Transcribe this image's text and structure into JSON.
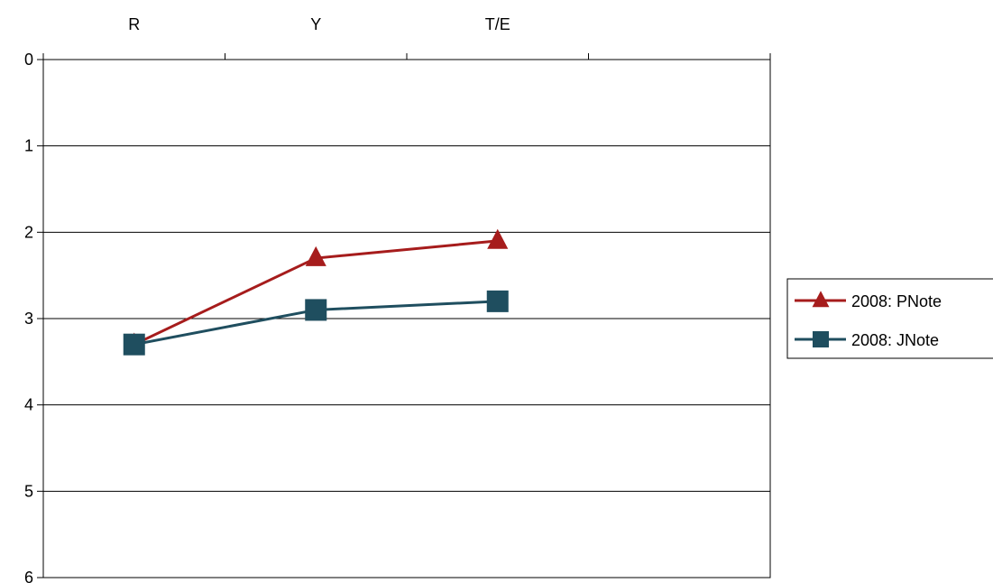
{
  "chart_data": {
    "type": "line",
    "categories": [
      "R",
      "Y",
      "T/E"
    ],
    "x_axis_slots": 4,
    "x_axis_position": "top",
    "y_axis_reversed": true,
    "ylim": [
      0,
      6
    ],
    "yticks": [
      "0",
      "1",
      "2",
      "3",
      "4",
      "5",
      "6"
    ],
    "grid": true,
    "legend_position": "right",
    "series": [
      {
        "name": "2008: PNote",
        "values": [
          3.3,
          2.3,
          2.1
        ],
        "color": "#a61c1c",
        "marker": "triangle"
      },
      {
        "name": "2008: JNote",
        "values": [
          3.3,
          2.9,
          2.8
        ],
        "color": "#1f4e5f",
        "marker": "square"
      }
    ]
  }
}
